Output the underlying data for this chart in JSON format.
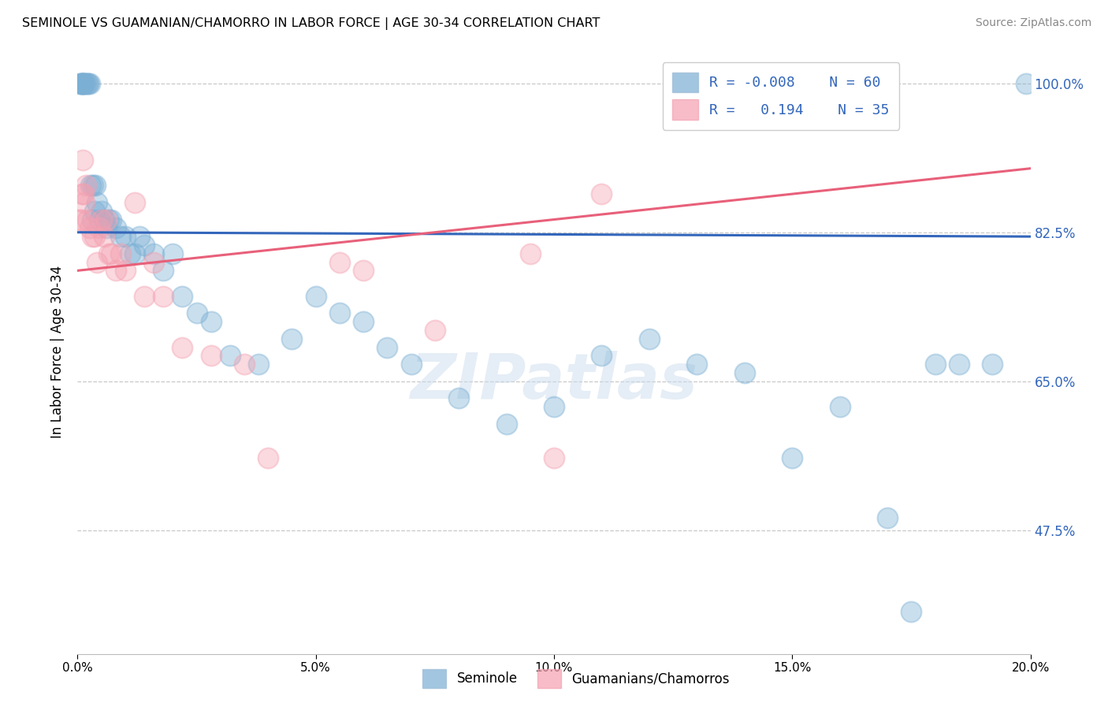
{
  "title": "SEMINOLE VS GUAMANIAN/CHAMORRO IN LABOR FORCE | AGE 30-34 CORRELATION CHART",
  "source": "Source: ZipAtlas.com",
  "ylabel": "In Labor Force | Age 30-34",
  "xlim": [
    0.0,
    20.0
  ],
  "ylim": [
    33.0,
    104.0
  ],
  "yticks": [
    47.5,
    65.0,
    82.5,
    100.0
  ],
  "xticks": [
    0.0,
    5.0,
    10.0,
    15.0,
    20.0
  ],
  "xtick_labels": [
    "0.0%",
    "5.0%",
    "10.0%",
    "15.0%",
    "20.0%"
  ],
  "ytick_labels": [
    "47.5%",
    "65.0%",
    "82.5%",
    "100.0%"
  ],
  "legend_r1": "R = -0.008",
  "legend_n1": "N = 60",
  "legend_r2": "R =   0.194",
  "legend_n2": "N = 35",
  "blue_color": "#7BAFD4",
  "pink_color": "#F4A0B0",
  "blue_line_color": "#3366BB",
  "pink_line_color": "#E8607A",
  "blue_text_color": "#3366BB",
  "watermark": "ZIPatlas",
  "blue_x": [
    0.05,
    0.07,
    0.09,
    0.1,
    0.11,
    0.12,
    0.13,
    0.15,
    0.17,
    0.2,
    0.22,
    0.25,
    0.28,
    0.3,
    0.32,
    0.35,
    0.38,
    0.4,
    0.45,
    0.5,
    0.55,
    0.6,
    0.65,
    0.7,
    0.8,
    0.9,
    1.0,
    1.1,
    1.2,
    1.3,
    1.4,
    1.6,
    1.8,
    2.0,
    2.2,
    2.5,
    2.8,
    3.2,
    3.8,
    4.5,
    5.0,
    5.5,
    6.0,
    6.5,
    7.0,
    8.0,
    9.0,
    10.0,
    11.0,
    12.0,
    13.0,
    14.0,
    15.0,
    16.0,
    17.0,
    17.5,
    18.0,
    18.5,
    19.2,
    19.9
  ],
  "blue_y": [
    100.0,
    100.0,
    100.0,
    100.0,
    100.0,
    100.0,
    100.0,
    100.0,
    100.0,
    100.0,
    100.0,
    100.0,
    88.0,
    84.0,
    88.0,
    85.0,
    88.0,
    86.0,
    84.0,
    85.0,
    84.0,
    83.0,
    84.0,
    84.0,
    83.0,
    82.0,
    82.0,
    80.0,
    80.0,
    82.0,
    81.0,
    80.0,
    78.0,
    80.0,
    75.0,
    73.0,
    72.0,
    68.0,
    67.0,
    70.0,
    75.0,
    73.0,
    72.0,
    69.0,
    67.0,
    63.0,
    60.0,
    62.0,
    68.0,
    70.0,
    67.0,
    66.0,
    56.0,
    62.0,
    49.0,
    38.0,
    67.0,
    67.0,
    67.0,
    100.0
  ],
  "pink_x": [
    0.05,
    0.07,
    0.09,
    0.11,
    0.13,
    0.15,
    0.17,
    0.2,
    0.25,
    0.3,
    0.35,
    0.4,
    0.45,
    0.5,
    0.55,
    0.6,
    0.65,
    0.7,
    0.8,
    0.9,
    1.0,
    1.2,
    1.4,
    1.6,
    1.8,
    2.2,
    2.8,
    3.5,
    4.0,
    5.5,
    6.0,
    7.5,
    9.5,
    10.0,
    11.0
  ],
  "pink_y": [
    84.0,
    84.0,
    87.0,
    91.0,
    87.0,
    86.0,
    88.0,
    84.0,
    83.0,
    82.0,
    82.0,
    79.0,
    83.0,
    84.0,
    82.0,
    84.0,
    80.0,
    80.0,
    78.0,
    80.0,
    78.0,
    86.0,
    75.0,
    79.0,
    75.0,
    69.0,
    68.0,
    67.0,
    56.0,
    79.0,
    78.0,
    71.0,
    80.0,
    56.0,
    87.0
  ]
}
